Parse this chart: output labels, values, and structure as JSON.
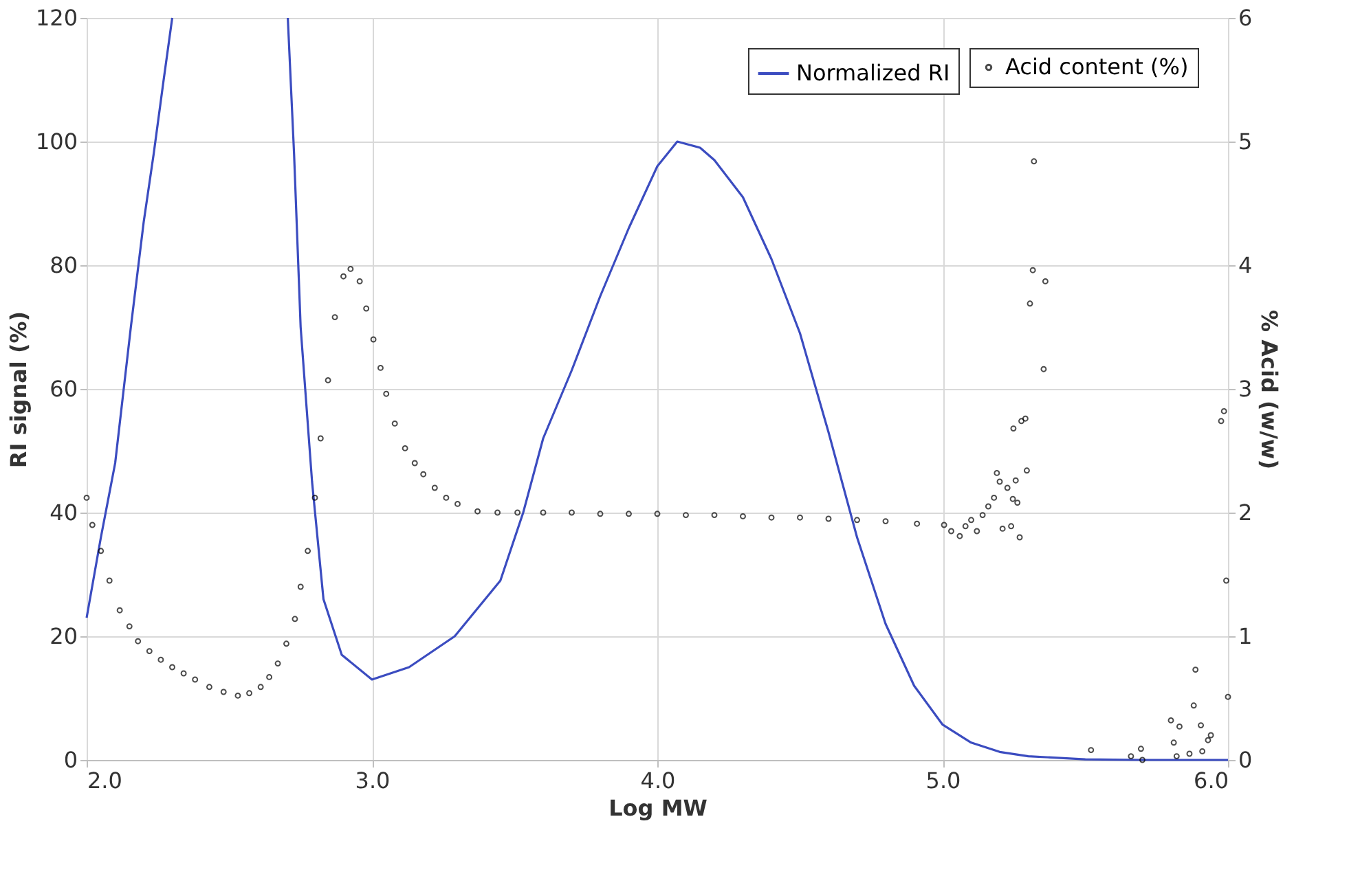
{
  "chart_data": {
    "type": "line",
    "xlabel": "Log MW",
    "ylabel": "RI signal (%)",
    "y2label": "% Acid (w/w)",
    "xlim": [
      2.0,
      6.0
    ],
    "xticks": [
      {
        "value": 2,
        "label": "2.0"
      },
      {
        "value": 3,
        "label": "3.0"
      },
      {
        "value": 4,
        "label": "4.0"
      },
      {
        "value": 5,
        "label": "5.0"
      },
      {
        "value": 6,
        "label": "6.0"
      }
    ],
    "ylim": [
      0,
      120
    ],
    "yticks": [
      0,
      20,
      40,
      60,
      80,
      100,
      120
    ],
    "y2lim": [
      0,
      6
    ],
    "y2ticks": [
      0,
      1,
      2,
      3,
      4,
      5,
      6
    ],
    "grid": true,
    "legend": "top right",
    "series": [
      {
        "name": "Normalized RI",
        "color": "#3b4cc0",
        "marker": "none",
        "line_style": "solid",
        "x": [
          2.0,
          2.05,
          2.1,
          2.155,
          2.2,
          2.235,
          2.27,
          2.3,
          2.5,
          2.705,
          2.727,
          2.75,
          2.79,
          2.83,
          2.894,
          3.0,
          3.13,
          3.29,
          3.45,
          3.53,
          3.6,
          3.7,
          3.8,
          3.9,
          4.0,
          4.07,
          4.15,
          4.2,
          4.3,
          4.4,
          4.5,
          4.6,
          4.7,
          4.8,
          4.9,
          5.0,
          5.1,
          5.2,
          5.3,
          5.5,
          5.7,
          6.0
        ],
        "values": [
          23,
          36,
          48,
          70,
          87,
          98,
          110,
          120,
          null,
          120,
          98,
          70,
          45,
          26,
          17,
          13,
          15,
          20,
          29,
          40,
          52,
          63,
          75,
          86,
          96,
          100,
          99,
          97,
          91,
          81,
          69,
          53,
          36,
          22,
          12,
          5.7,
          2.8,
          1.3,
          0.6,
          0.1,
          0,
          0
        ]
      },
      {
        "name": "Acid content (%)",
        "type": "scatter",
        "axis": "y2",
        "color": "#000000",
        "marker": "circle",
        "x": [
          2.0,
          2.02,
          2.05,
          2.08,
          2.116,
          2.15,
          2.18,
          2.22,
          2.26,
          2.3,
          2.34,
          2.38,
          2.43,
          2.48,
          2.53,
          2.57,
          2.61,
          2.64,
          2.67,
          2.7,
          2.73,
          2.75,
          2.775,
          2.8,
          2.82,
          2.846,
          2.87,
          2.9,
          2.925,
          2.957,
          2.98,
          3.005,
          3.03,
          3.05,
          3.08,
          3.116,
          3.15,
          3.18,
          3.22,
          3.26,
          3.3,
          3.37,
          3.44,
          3.51,
          3.6,
          3.7,
          3.8,
          3.9,
          4.0,
          4.1,
          4.2,
          4.3,
          4.4,
          4.5,
          4.6,
          4.7,
          4.8,
          4.91,
          5.005,
          5.03,
          5.06,
          5.08,
          5.1,
          5.12,
          5.14,
          5.16,
          5.18,
          5.19,
          5.2,
          5.21,
          5.227,
          5.24,
          5.246,
          5.248,
          5.256,
          5.262,
          5.27,
          5.276,
          5.29,
          5.295,
          5.306,
          5.316,
          5.32,
          5.354,
          5.36,
          5.52,
          5.66,
          5.695,
          5.7,
          5.8,
          5.81,
          5.82,
          5.83,
          5.865,
          5.88,
          5.886,
          5.905,
          5.91,
          5.93,
          5.94,
          5.976,
          5.986,
          5.994,
          6.0
        ],
        "values": [
          2.12,
          1.9,
          1.69,
          1.45,
          1.21,
          1.08,
          0.96,
          0.88,
          0.81,
          0.75,
          0.7,
          0.65,
          0.59,
          0.55,
          0.52,
          0.54,
          0.59,
          0.67,
          0.78,
          0.94,
          1.14,
          1.4,
          1.69,
          2.12,
          2.6,
          3.07,
          3.58,
          3.91,
          3.97,
          3.87,
          3.65,
          3.4,
          3.17,
          2.96,
          2.72,
          2.52,
          2.4,
          2.31,
          2.2,
          2.12,
          2.07,
          2.01,
          2.0,
          2.0,
          2.0,
          2.0,
          1.99,
          1.99,
          1.99,
          1.98,
          1.98,
          1.97,
          1.96,
          1.96,
          1.95,
          1.94,
          1.93,
          1.91,
          1.9,
          1.85,
          1.81,
          1.89,
          1.94,
          1.85,
          1.98,
          2.05,
          2.12,
          2.32,
          2.25,
          1.87,
          2.2,
          1.89,
          2.11,
          2.68,
          2.26,
          2.08,
          1.8,
          2.74,
          2.76,
          2.34,
          3.69,
          3.96,
          4.84,
          3.16,
          3.87,
          0.08,
          0.03,
          0.09,
          0.0,
          0.32,
          0.14,
          0.03,
          0.27,
          0.05,
          0.44,
          0.73,
          0.28,
          0.07,
          0.16,
          0.2,
          2.74,
          2.82,
          1.45,
          0.51
        ]
      }
    ]
  }
}
